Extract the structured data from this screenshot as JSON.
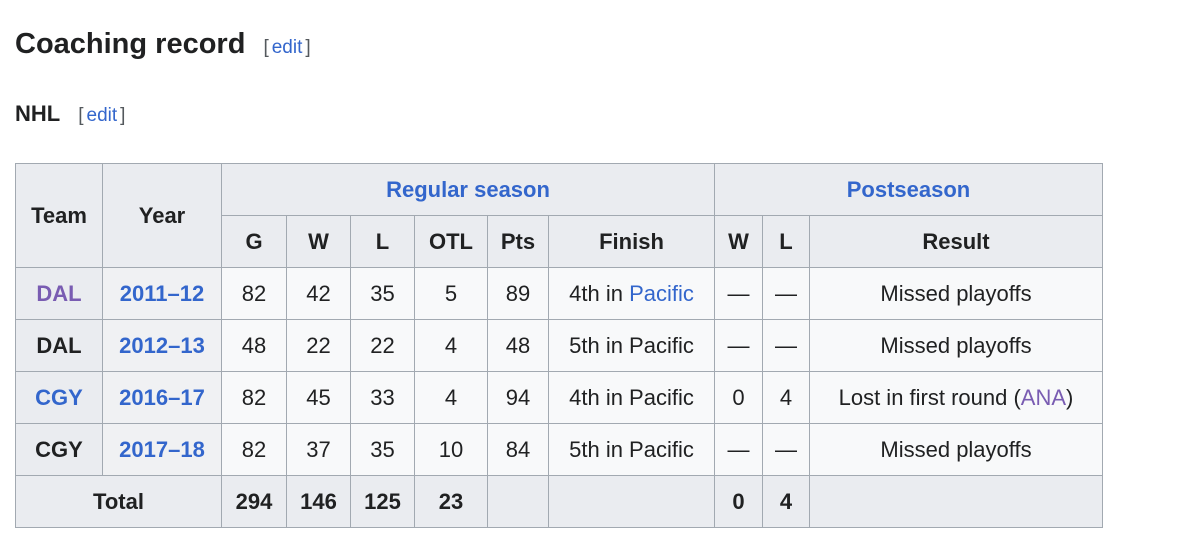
{
  "heading": "Coaching record",
  "edit": "edit",
  "subheading": "NHL",
  "table": {
    "groups": {
      "team": "Team",
      "year": "Year",
      "regular": "Regular season",
      "post": "Postseason"
    },
    "cols": [
      "G",
      "W",
      "L",
      "OTL",
      "Pts",
      "Finish",
      "W",
      "L",
      "Result"
    ],
    "rows": [
      {
        "team": "DAL",
        "team_link": "visited",
        "year": "2011–12",
        "g": "82",
        "w": "42",
        "l": "35",
        "otl": "5",
        "pts": "89",
        "finish_pre": "4th in ",
        "finish_link": "Pacific",
        "pw": "—",
        "pl": "—",
        "result": "Missed playoffs",
        "result_link": "",
        "result_post": ""
      },
      {
        "team": "DAL",
        "team_link": "none",
        "year": "2012–13",
        "g": "48",
        "w": "22",
        "l": "22",
        "otl": "4",
        "pts": "48",
        "finish_pre": "5th in Pacific",
        "finish_link": "",
        "pw": "—",
        "pl": "—",
        "result": "Missed playoffs",
        "result_link": "",
        "result_post": ""
      },
      {
        "team": "CGY",
        "team_link": "link",
        "year": "2016–17",
        "g": "82",
        "w": "45",
        "l": "33",
        "otl": "4",
        "pts": "94",
        "finish_pre": "4th in Pacific",
        "finish_link": "",
        "pw": "0",
        "pl": "4",
        "result": "Lost in first round (",
        "result_link": "ANA",
        "result_post": ")"
      },
      {
        "team": "CGY",
        "team_link": "none",
        "year": "2017–18",
        "g": "82",
        "w": "37",
        "l": "35",
        "otl": "10",
        "pts": "84",
        "finish_pre": "5th in Pacific",
        "finish_link": "",
        "pw": "—",
        "pl": "—",
        "result": "Missed playoffs",
        "result_link": "",
        "result_post": ""
      }
    ],
    "total": {
      "label": "Total",
      "g": "294",
      "w": "146",
      "l": "125",
      "otl": "23",
      "pw": "0",
      "pl": "4"
    }
  }
}
